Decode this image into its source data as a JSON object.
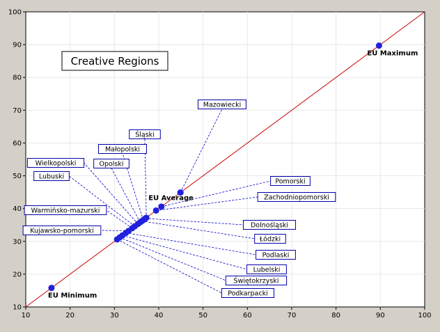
{
  "chart_data": {
    "type": "scatter",
    "title": "Creative Regions",
    "xlabel": "",
    "ylabel": "",
    "xlim": [
      10,
      100
    ],
    "ylim": [
      10,
      100
    ],
    "xticks": [
      10,
      20,
      30,
      40,
      50,
      60,
      70,
      80,
      90,
      100
    ],
    "yticks": [
      10,
      20,
      30,
      40,
      50,
      60,
      70,
      80,
      90,
      100
    ],
    "grid": true,
    "legend": "none",
    "diagonal_line": {
      "from": [
        10,
        10
      ],
      "to": [
        100,
        100
      ],
      "color": "#cc0000"
    },
    "colors": {
      "point": "#2020dd",
      "leader": "#0000cc",
      "label_border": "#0000aa",
      "plot_bg": "#ffffff",
      "frame_bg": "#d4d0c8",
      "grid": "#e8e8e8"
    },
    "reference_points": [
      {
        "name": "EU Maximum",
        "x": 89.7,
        "y": 89.7
      },
      {
        "name": "EU Average",
        "x": 44.9,
        "y": 44.9
      },
      {
        "name": "EU Minimum",
        "x": 15.8,
        "y": 15.8
      }
    ],
    "regions": [
      {
        "name": "Mazowiecki",
        "x": 44.9,
        "y": 44.9
      },
      {
        "name": "Śląski",
        "x": 37.2,
        "y": 37.2
      },
      {
        "name": "Małopolski",
        "x": 36.5,
        "y": 36.5
      },
      {
        "name": "Opolski",
        "x": 35.8,
        "y": 35.8
      },
      {
        "name": "Wielkopolski",
        "x": 35.3,
        "y": 35.3
      },
      {
        "name": "Lubuski",
        "x": 34.6,
        "y": 34.6
      },
      {
        "name": "Pomorski",
        "x": 40.6,
        "y": 40.6
      },
      {
        "name": "Zachodniopomorski",
        "x": 39.4,
        "y": 39.4
      },
      {
        "name": "Warmińsko-mazurski",
        "x": 34.0,
        "y": 34.0
      },
      {
        "name": "Kujawsko-pomorski",
        "x": 33.2,
        "y": 33.2
      },
      {
        "name": "Dolnośląski",
        "x": 37.0,
        "y": 37.0
      },
      {
        "name": "Łódzki",
        "x": 36.2,
        "y": 36.2
      },
      {
        "name": "Podlaski",
        "x": 32.6,
        "y": 32.6
      },
      {
        "name": "Lubelski",
        "x": 31.8,
        "y": 31.8
      },
      {
        "name": "Świętokrzyski",
        "x": 31.2,
        "y": 31.2
      },
      {
        "name": "Podkarpacki",
        "x": 30.6,
        "y": 30.6
      }
    ]
  }
}
